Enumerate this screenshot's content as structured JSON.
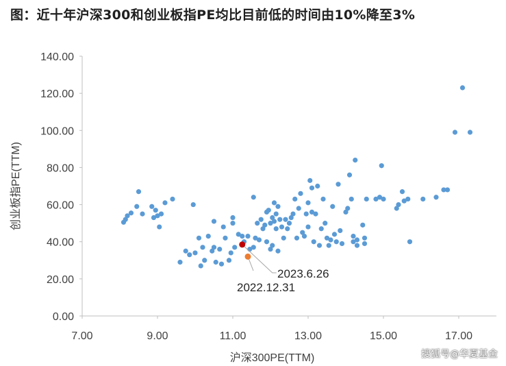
{
  "title": "图：近十年沪深300和创业板指PE均比目前低的时间由10%降至3%",
  "watermark": "搜狐号@华夏基金",
  "chart_data": {
    "type": "scatter",
    "title": "图：近十年沪深300和创业板指PE均比目前低的时间由10%降至3%",
    "xlabel": "沪深300PE(TTM)",
    "ylabel": "创业板指PE(TTM)",
    "xlim": [
      7,
      18
    ],
    "ylim": [
      0,
      140
    ],
    "xticks": [
      "7.00",
      "9.00",
      "11.00",
      "13.00",
      "15.00",
      "17.00"
    ],
    "yticks": [
      "0.00",
      "20.00",
      "40.00",
      "60.00",
      "80.00",
      "100.00",
      "120.00",
      "140.00"
    ],
    "grid": false,
    "points_color": "#5b9bd5",
    "points": [
      [
        8.1,
        50.5
      ],
      [
        8.15,
        52
      ],
      [
        8.2,
        54
      ],
      [
        8.3,
        55.5
      ],
      [
        8.45,
        59
      ],
      [
        8.5,
        67
      ],
      [
        8.6,
        55
      ],
      [
        8.85,
        59
      ],
      [
        8.9,
        53
      ],
      [
        8.95,
        57
      ],
      [
        9.0,
        54
      ],
      [
        9.05,
        48
      ],
      [
        9.1,
        55
      ],
      [
        9.2,
        61
      ],
      [
        9.4,
        63
      ],
      [
        9.6,
        29
      ],
      [
        9.75,
        35
      ],
      [
        9.85,
        33
      ],
      [
        9.95,
        60
      ],
      [
        10.0,
        34
      ],
      [
        10.1,
        42
      ],
      [
        10.15,
        27
      ],
      [
        10.2,
        37
      ],
      [
        10.25,
        30
      ],
      [
        10.35,
        43
      ],
      [
        10.45,
        35
      ],
      [
        10.5,
        37
      ],
      [
        10.5,
        51
      ],
      [
        10.55,
        29
      ],
      [
        10.65,
        36
      ],
      [
        10.7,
        28
      ],
      [
        10.75,
        48
      ],
      [
        10.8,
        42
      ],
      [
        10.9,
        30
      ],
      [
        10.95,
        34
      ],
      [
        11.0,
        50
      ],
      [
        11.0,
        53
      ],
      [
        11.05,
        37
      ],
      [
        11.15,
        44
      ],
      [
        11.25,
        43
      ],
      [
        11.3,
        40
      ],
      [
        11.4,
        43
      ],
      [
        11.45,
        36
      ],
      [
        11.55,
        37
      ],
      [
        11.55,
        64
      ],
      [
        11.6,
        42
      ],
      [
        11.65,
        50
      ],
      [
        11.7,
        41
      ],
      [
        11.75,
        52
      ],
      [
        11.8,
        47
      ],
      [
        11.85,
        49
      ],
      [
        11.9,
        40
      ],
      [
        11.9,
        56
      ],
      [
        11.95,
        57
      ],
      [
        12.0,
        36
      ],
      [
        12.0,
        50
      ],
      [
        12.05,
        53
      ],
      [
        12.05,
        38
      ],
      [
        12.1,
        51
      ],
      [
        12.1,
        61
      ],
      [
        12.15,
        55
      ],
      [
        12.15,
        47
      ],
      [
        12.2,
        35
      ],
      [
        12.2,
        59
      ],
      [
        12.25,
        52
      ],
      [
        12.3,
        48
      ],
      [
        12.35,
        42
      ],
      [
        12.4,
        52
      ],
      [
        12.45,
        47
      ],
      [
        12.5,
        50
      ],
      [
        12.55,
        53
      ],
      [
        12.6,
        55
      ],
      [
        12.65,
        63
      ],
      [
        12.7,
        42
      ],
      [
        12.75,
        58
      ],
      [
        12.8,
        66
      ],
      [
        12.85,
        45
      ],
      [
        12.9,
        43
      ],
      [
        12.95,
        55
      ],
      [
        13.0,
        48
      ],
      [
        13.0,
        61
      ],
      [
        13.05,
        73
      ],
      [
        13.1,
        69
      ],
      [
        13.1,
        56
      ],
      [
        13.15,
        40
      ],
      [
        13.2,
        55
      ],
      [
        13.25,
        70
      ],
      [
        13.3,
        38
      ],
      [
        13.35,
        47
      ],
      [
        13.4,
        63
      ],
      [
        13.45,
        50
      ],
      [
        13.5,
        42
      ],
      [
        13.55,
        38
      ],
      [
        13.6,
        41
      ],
      [
        13.65,
        59
      ],
      [
        13.7,
        44
      ],
      [
        13.75,
        40
      ],
      [
        13.8,
        71
      ],
      [
        13.85,
        46
      ],
      [
        13.9,
        39
      ],
      [
        14.0,
        56
      ],
      [
        14.05,
        58
      ],
      [
        14.1,
        76
      ],
      [
        14.15,
        63
      ],
      [
        14.2,
        43
      ],
      [
        14.2,
        40
      ],
      [
        14.25,
        84
      ],
      [
        14.3,
        38
      ],
      [
        14.3,
        41
      ],
      [
        14.45,
        49
      ],
      [
        14.5,
        42
      ],
      [
        14.5,
        39
      ],
      [
        14.55,
        63
      ],
      [
        14.8,
        63
      ],
      [
        14.9,
        64
      ],
      [
        14.95,
        81
      ],
      [
        15.0,
        63
      ],
      [
        15.35,
        58
      ],
      [
        15.4,
        60
      ],
      [
        15.5,
        67
      ],
      [
        15.55,
        62
      ],
      [
        15.65,
        63
      ],
      [
        15.7,
        40
      ],
      [
        16.05,
        63
      ],
      [
        16.4,
        64
      ],
      [
        16.6,
        68
      ],
      [
        16.7,
        68
      ],
      [
        16.9,
        99
      ],
      [
        17.1,
        123
      ],
      [
        17.3,
        99
      ]
    ],
    "highlights": [
      {
        "label": "2023.6.26",
        "x": 11.25,
        "y": 38.5,
        "color": "#c00000"
      },
      {
        "label": "2022.12.31",
        "x": 11.4,
        "y": 32,
        "color": "#ed7d31"
      }
    ]
  }
}
